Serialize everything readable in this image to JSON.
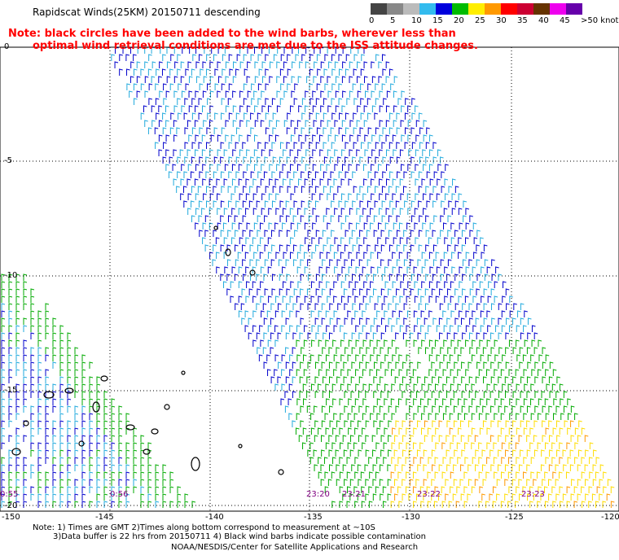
{
  "title": "Rapidscat Winds(25KM) 20150711 descending",
  "note": {
    "line1": "Note: black circles have been added to the wind barbs, wherever less than",
    "line2": "optimal wind retrieval conditions are met due to the ISS attitude changes."
  },
  "legend": {
    "labels": [
      "0",
      "5",
      "10",
      "15",
      "20",
      "25",
      "30",
      "35",
      "40",
      "45",
      ">50 knots"
    ],
    "colors": [
      "#444444",
      "#888888",
      "#bbbbbb",
      "#33bbee",
      "#0000dd",
      "#00bb00",
      "#ffee00",
      "#ff9900",
      "#ff0000",
      "#cc0033",
      "#663300",
      "#ee00ee",
      "#6600aa"
    ]
  },
  "axes": {
    "x_ticks": [
      "-150",
      "-145",
      "-140",
      "-135",
      "-130",
      "-125",
      "-120"
    ],
    "y_ticks": [
      "0",
      "-5",
      "-10",
      "-15",
      "-20"
    ]
  },
  "times": [
    "0:55",
    "0:56",
    "23:20",
    "23:21",
    "23:22",
    "23:23"
  ],
  "footer": {
    "line1": "Note: 1) Times are GMT 2)Times along bottom correspond to measurement at ~10S",
    "line2": "3)Data buffer is 22 hrs from 20150711 4) Black wind barbs indicate possible contamination",
    "line3": "NOAA/NESDIS/Center for Satellite Applications and Research"
  },
  "colors": {
    "note": "#ff0000",
    "time": "#800080",
    "grid": "#000000"
  }
}
